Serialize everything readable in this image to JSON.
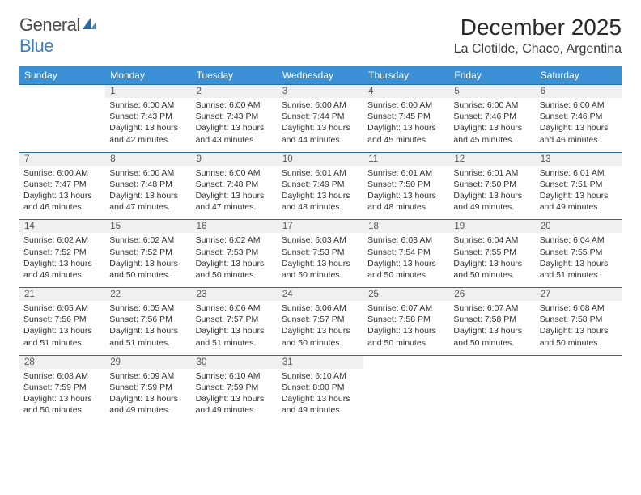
{
  "brand": {
    "part1": "General",
    "part2": "Blue"
  },
  "title": "December 2025",
  "location": "La Clotilde, Chaco, Argentina",
  "header_bg": "#3b8fd4",
  "header_text": "#ffffff",
  "daynum_bg": "#eef0f2",
  "border_color": "#2a6aa8",
  "days": [
    "Sunday",
    "Monday",
    "Tuesday",
    "Wednesday",
    "Thursday",
    "Friday",
    "Saturday"
  ],
  "weeks": [
    [
      null,
      {
        "n": "1",
        "sr": "6:00 AM",
        "ss": "7:43 PM",
        "dl": "13 hours and 42 minutes."
      },
      {
        "n": "2",
        "sr": "6:00 AM",
        "ss": "7:43 PM",
        "dl": "13 hours and 43 minutes."
      },
      {
        "n": "3",
        "sr": "6:00 AM",
        "ss": "7:44 PM",
        "dl": "13 hours and 44 minutes."
      },
      {
        "n": "4",
        "sr": "6:00 AM",
        "ss": "7:45 PM",
        "dl": "13 hours and 45 minutes."
      },
      {
        "n": "5",
        "sr": "6:00 AM",
        "ss": "7:46 PM",
        "dl": "13 hours and 45 minutes."
      },
      {
        "n": "6",
        "sr": "6:00 AM",
        "ss": "7:46 PM",
        "dl": "13 hours and 46 minutes."
      }
    ],
    [
      {
        "n": "7",
        "sr": "6:00 AM",
        "ss": "7:47 PM",
        "dl": "13 hours and 46 minutes."
      },
      {
        "n": "8",
        "sr": "6:00 AM",
        "ss": "7:48 PM",
        "dl": "13 hours and 47 minutes."
      },
      {
        "n": "9",
        "sr": "6:00 AM",
        "ss": "7:48 PM",
        "dl": "13 hours and 47 minutes."
      },
      {
        "n": "10",
        "sr": "6:01 AM",
        "ss": "7:49 PM",
        "dl": "13 hours and 48 minutes."
      },
      {
        "n": "11",
        "sr": "6:01 AM",
        "ss": "7:50 PM",
        "dl": "13 hours and 48 minutes."
      },
      {
        "n": "12",
        "sr": "6:01 AM",
        "ss": "7:50 PM",
        "dl": "13 hours and 49 minutes."
      },
      {
        "n": "13",
        "sr": "6:01 AM",
        "ss": "7:51 PM",
        "dl": "13 hours and 49 minutes."
      }
    ],
    [
      {
        "n": "14",
        "sr": "6:02 AM",
        "ss": "7:52 PM",
        "dl": "13 hours and 49 minutes."
      },
      {
        "n": "15",
        "sr": "6:02 AM",
        "ss": "7:52 PM",
        "dl": "13 hours and 50 minutes."
      },
      {
        "n": "16",
        "sr": "6:02 AM",
        "ss": "7:53 PM",
        "dl": "13 hours and 50 minutes."
      },
      {
        "n": "17",
        "sr": "6:03 AM",
        "ss": "7:53 PM",
        "dl": "13 hours and 50 minutes."
      },
      {
        "n": "18",
        "sr": "6:03 AM",
        "ss": "7:54 PM",
        "dl": "13 hours and 50 minutes."
      },
      {
        "n": "19",
        "sr": "6:04 AM",
        "ss": "7:55 PM",
        "dl": "13 hours and 50 minutes."
      },
      {
        "n": "20",
        "sr": "6:04 AM",
        "ss": "7:55 PM",
        "dl": "13 hours and 51 minutes."
      }
    ],
    [
      {
        "n": "21",
        "sr": "6:05 AM",
        "ss": "7:56 PM",
        "dl": "13 hours and 51 minutes."
      },
      {
        "n": "22",
        "sr": "6:05 AM",
        "ss": "7:56 PM",
        "dl": "13 hours and 51 minutes."
      },
      {
        "n": "23",
        "sr": "6:06 AM",
        "ss": "7:57 PM",
        "dl": "13 hours and 51 minutes."
      },
      {
        "n": "24",
        "sr": "6:06 AM",
        "ss": "7:57 PM",
        "dl": "13 hours and 50 minutes."
      },
      {
        "n": "25",
        "sr": "6:07 AM",
        "ss": "7:58 PM",
        "dl": "13 hours and 50 minutes."
      },
      {
        "n": "26",
        "sr": "6:07 AM",
        "ss": "7:58 PM",
        "dl": "13 hours and 50 minutes."
      },
      {
        "n": "27",
        "sr": "6:08 AM",
        "ss": "7:58 PM",
        "dl": "13 hours and 50 minutes."
      }
    ],
    [
      {
        "n": "28",
        "sr": "6:08 AM",
        "ss": "7:59 PM",
        "dl": "13 hours and 50 minutes."
      },
      {
        "n": "29",
        "sr": "6:09 AM",
        "ss": "7:59 PM",
        "dl": "13 hours and 49 minutes."
      },
      {
        "n": "30",
        "sr": "6:10 AM",
        "ss": "7:59 PM",
        "dl": "13 hours and 49 minutes."
      },
      {
        "n": "31",
        "sr": "6:10 AM",
        "ss": "8:00 PM",
        "dl": "13 hours and 49 minutes."
      },
      null,
      null,
      null
    ]
  ],
  "labels": {
    "sunrise": "Sunrise:",
    "sunset": "Sunset:",
    "daylight": "Daylight:"
  }
}
